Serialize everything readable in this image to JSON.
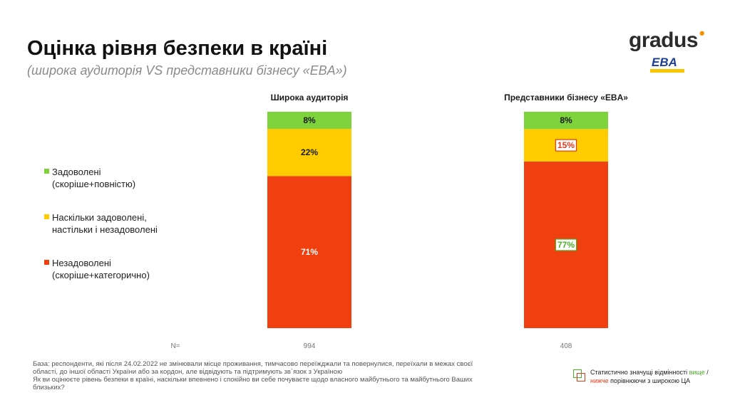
{
  "header": {
    "title": "Оцінка рівня безпеки в країні",
    "subtitle": "(широка аудиторія VS представники бізнесу «EBA»)"
  },
  "logos": {
    "gradus": "gradus",
    "eba": "EBA"
  },
  "legend": [
    {
      "label_line1": "Задоволені",
      "label_line2": "(скоріше+повністю)",
      "color": "#7ed33c"
    },
    {
      "label_line1": "Наскільки задоволені,",
      "label_line2": "настільки і незадоволені",
      "color": "#ffcc00"
    },
    {
      "label_line1": "Незадоволені",
      "label_line2": "(скоріше+категорично)",
      "color": "#f0400f"
    }
  ],
  "chart_data": {
    "type": "bar",
    "stacked": true,
    "percent": true,
    "categories": [
      "Широка аудиторія",
      "Представники бізнесу «EBA»"
    ],
    "series": [
      {
        "name": "Незадоволені (скоріше+категорично)",
        "values": [
          71,
          77
        ],
        "color": "#f0400f"
      },
      {
        "name": "Наскільки задоволені, настільки і незадоволені",
        "values": [
          22,
          15
        ],
        "color": "#ffcc00"
      },
      {
        "name": "Задоволені (скоріше+повністю)",
        "values": [
          8,
          8
        ],
        "color": "#7ed33c"
      }
    ],
    "data_labels": [
      [
        "71%",
        "22%",
        "8%"
      ],
      [
        "77%",
        "15%",
        "8%"
      ]
    ],
    "n_label": "N=",
    "n_values": [
      "994",
      "408"
    ],
    "highlights": [
      {
        "category_index": 1,
        "series_index": 0,
        "direction": "higher",
        "color": "#4caf28"
      },
      {
        "category_index": 1,
        "series_index": 1,
        "direction": "lower",
        "color": "#e8381a"
      }
    ],
    "legend_position": "left"
  },
  "footnote": {
    "base": "База: респонденти, які після 24.02.2022 не змінювали місце проживання, тимчасово переїжджали та повернулися, переїхали в межах своєї області, до іншої області України або за кордон, але відвідують та підтримують зв`язок з Україною",
    "question": "Як ви оцінюєте рівень безпеки в країні, наскільки впевнено і спокійно ви себе почуваєте щодо власного майбутнього та майбутнього Ваших близьких?"
  },
  "significance_note": {
    "part1": "Статистично значущі відмінності ",
    "higher": "вище",
    "part2": " /",
    "lower": "нижче",
    "part3": " порівнюючи з широкою ЦА"
  }
}
